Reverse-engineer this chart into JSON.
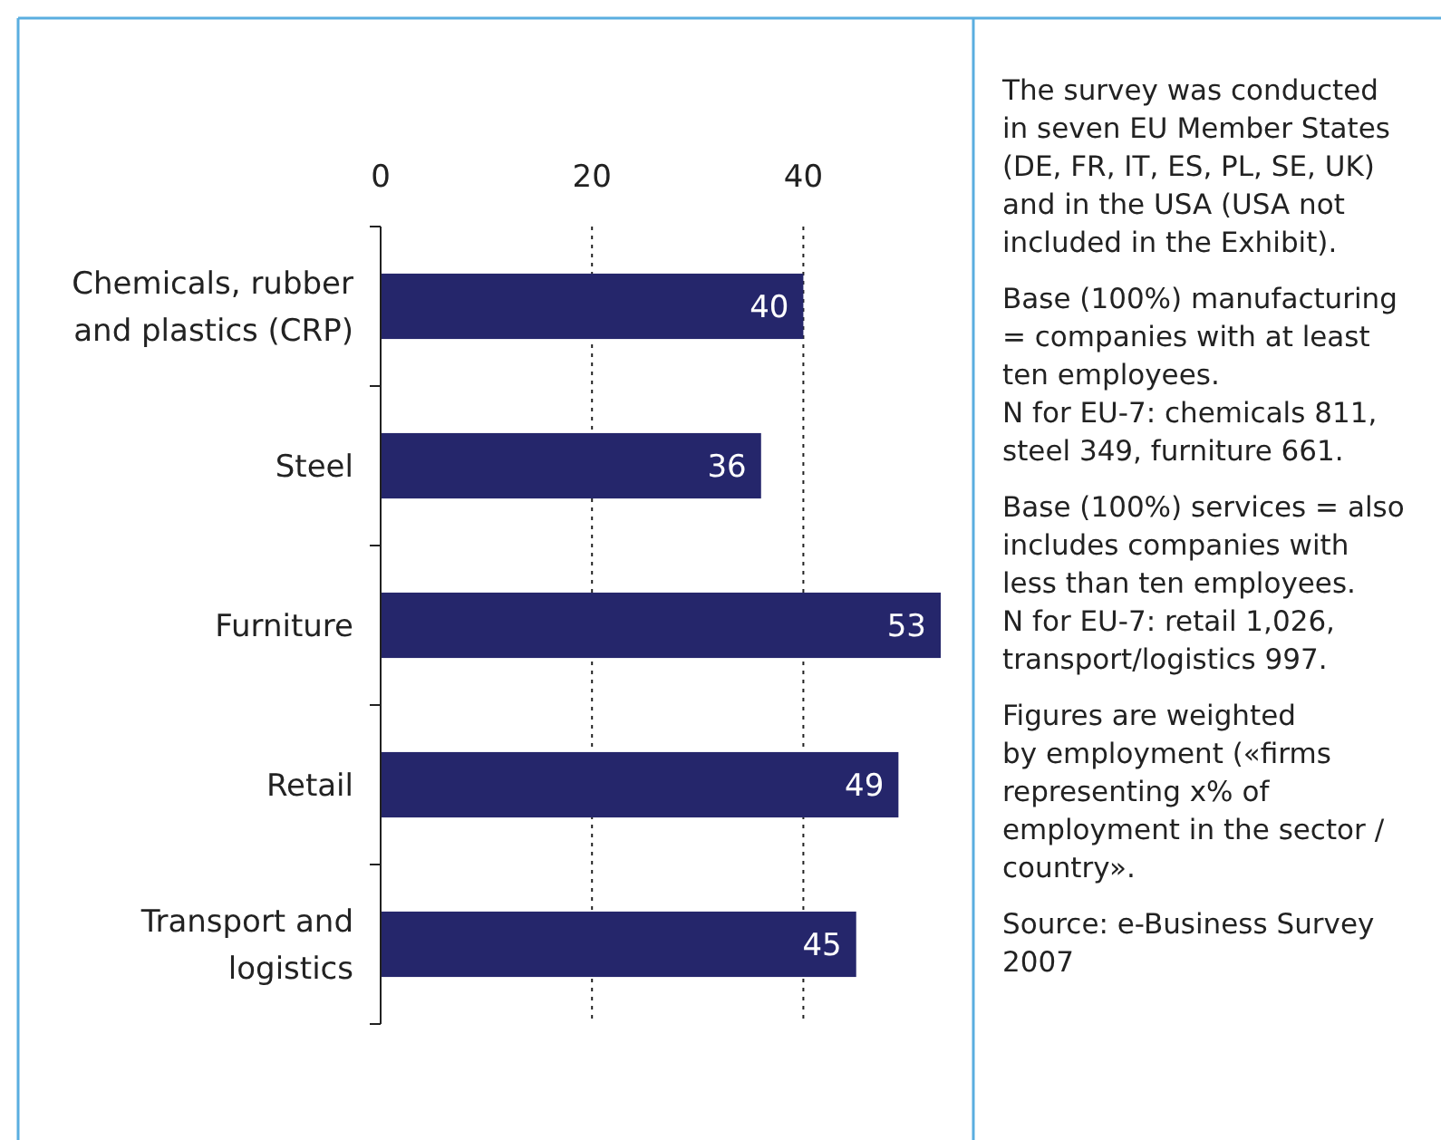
{
  "chart_data": {
    "type": "bar",
    "orientation": "horizontal",
    "categories": [
      "Chemicals, rubber and plastics (CRP)",
      "Steel",
      "Furniture",
      "Retail",
      "Transport and logistics"
    ],
    "values": [
      40,
      36,
      53,
      49,
      45
    ],
    "color": "#25266b",
    "xlim": [
      0,
      53
    ],
    "xticks": [
      0,
      20,
      40
    ],
    "grid": "x",
    "data_labels": true,
    "annotations": [
      "The survey was conducted\nin seven EU Member States\n(DE, FR, IT, ES, PL, SE, UK)\nand in the USA (USA not\nincluded in the Exhibit).",
      "Base (100%) manufacturing\n= companies with at least\nten employees.\nN for EU-7: chemicals 811,\nsteel 349, furniture 661.",
      "Base (100%) services = also\nincludes companies with\nless than ten employees.\nN for EU-7: retail 1,026,\ntransport/logistics 997.",
      "Figures are weighted\nby employment («firms\nrepresenting x% of\nemployment in the sector /\ncountry».",
      "Source: e-Business Survey\n2007"
    ]
  }
}
